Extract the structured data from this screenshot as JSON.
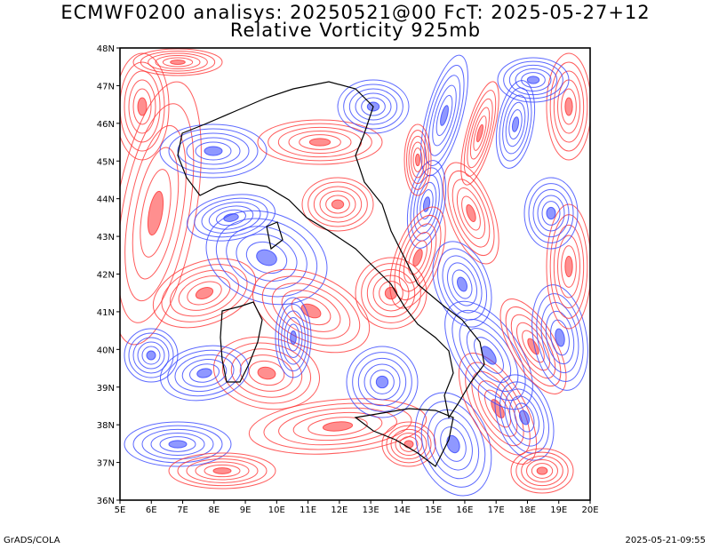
{
  "title_line1": "ECMWF0200 analisys: 20250521@00 FcT: 2025-05-27+12",
  "title_line2": "Relative Vorticity 925mb",
  "footer_left": "GrADS/COLA",
  "footer_right": "2025-05-21-09:55",
  "map": {
    "lon_labels": [
      "5E",
      "6E",
      "7E",
      "8E",
      "9E",
      "10E",
      "11E",
      "12E",
      "13E",
      "14E",
      "15E",
      "16E",
      "17E",
      "18E",
      "19E",
      "20E"
    ],
    "lat_labels": [
      "36N",
      "37N",
      "38N",
      "39N",
      "40N",
      "41N",
      "42N",
      "43N",
      "44N",
      "45N",
      "46N",
      "47N",
      "48N"
    ],
    "colors": {
      "positive": "#ff3333",
      "negative": "#3344ff",
      "coast": "#000000",
      "border": "#000000"
    }
  }
}
